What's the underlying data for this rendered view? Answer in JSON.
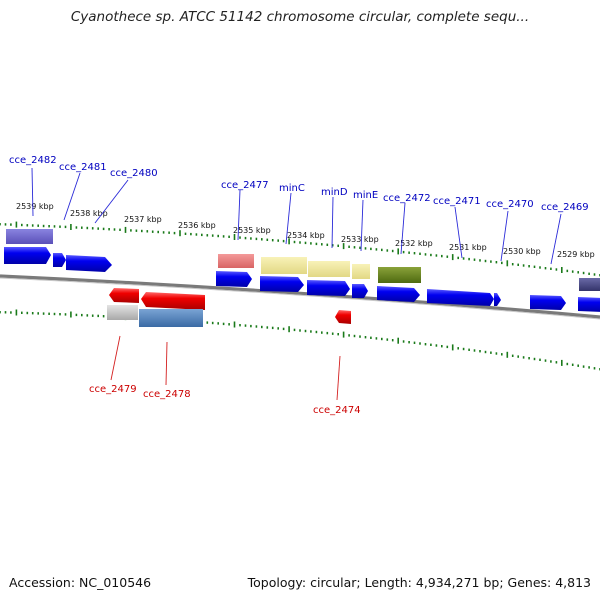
{
  "title": "Cyanothece sp. ATCC 51142 chromosome circular, complete sequ...",
  "footer": {
    "accession": "Accession: NC_010546",
    "topology": "Topology: circular; Length: 4,934,271 bp; Genes: 4,813"
  },
  "colors": {
    "forward_label": "#0000c0",
    "reverse_label": "#cc0000",
    "tick": "#1a7a1a",
    "backbone": "#808080",
    "cds": "#0000ee",
    "cds_reverse": "#ee0000"
  },
  "scale_labels": [
    "2539 kbp",
    "2538 kbp",
    "2537 kbp",
    "2536 kbp",
    "2535 kbp",
    "2534 kbp",
    "2533 kbp",
    "2532 kbp",
    "2531 kbp",
    "2530 kbp",
    "2529 kbp"
  ],
  "forward_genes": [
    "cce_2482",
    "cce_2481",
    "cce_2480",
    "cce_2477",
    "minC",
    "minD",
    "minE",
    "cce_2472",
    "cce_2471",
    "cce_2470",
    "cce_2469"
  ],
  "reverse_genes": [
    "cce_2479",
    "cce_2478",
    "cce_2474"
  ]
}
